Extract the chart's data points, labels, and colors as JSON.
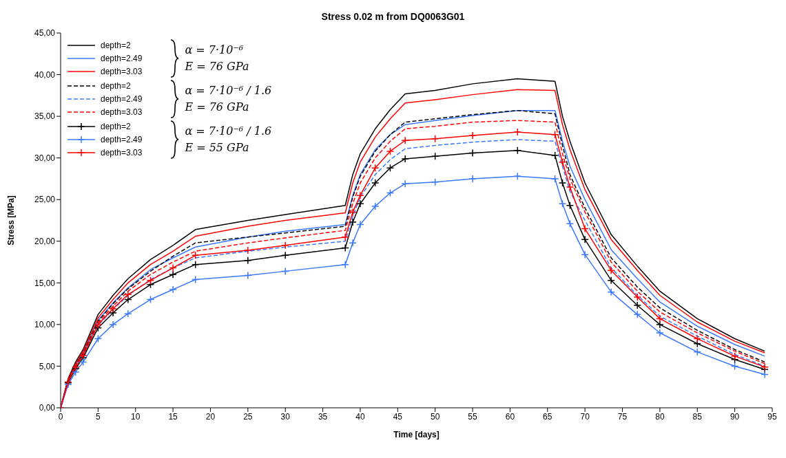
{
  "chart_data": {
    "type": "line",
    "title": "Stress 0.02 m from DQ0063G01",
    "xlabel": "Time [days]",
    "ylabel": "Stress [MPa]",
    "x": [
      0,
      1,
      2,
      3,
      5,
      7,
      9,
      12,
      15,
      18,
      25,
      30,
      38,
      39,
      40,
      42,
      44,
      46,
      50,
      55,
      61,
      66,
      67,
      68,
      70,
      73.5,
      77,
      80,
      85,
      90,
      94
    ],
    "xlim": [
      0,
      95
    ],
    "xticks": [
      0,
      5,
      10,
      15,
      20,
      25,
      30,
      35,
      40,
      45,
      50,
      55,
      60,
      65,
      70,
      75,
      80,
      85,
      90,
      95
    ],
    "ylim": [
      0,
      45
    ],
    "yticks": [
      {
        "value": 0,
        "label": "0,00"
      },
      {
        "value": 5,
        "label": "5,00"
      },
      {
        "value": 10,
        "label": "10,00"
      },
      {
        "value": 15,
        "label": "15,00"
      },
      {
        "value": 20,
        "label": "20,00"
      },
      {
        "value": 25,
        "label": "25,00"
      },
      {
        "value": 30,
        "label": "30,00"
      },
      {
        "value": 35,
        "label": "35,00"
      },
      {
        "value": 40,
        "label": "40,00"
      },
      {
        "value": 45,
        "label": "45,00"
      }
    ],
    "legend": "top left",
    "marker": "none",
    "line_style": "solid",
    "annotations": [
      "α = 7·10⁻⁶",
      "E = 76 GPa",
      "α = 7·10⁻⁶ / 1.6",
      "E = 76 GPa",
      "α = 7·10⁻⁶ / 1.6",
      "E = 55 GPa"
    ],
    "series": [
      {
        "name": "depth=2",
        "color": "#000000",
        "values": [
          0,
          3.5,
          5.5,
          7,
          11.2,
          13.5,
          15.5,
          17.8,
          19.5,
          21.4,
          22.5,
          23.2,
          24.3,
          28,
          30.5,
          33.5,
          35.8,
          37.7,
          38.1,
          38.9,
          39.5,
          39.2,
          35,
          32,
          27,
          20.8,
          17,
          14,
          10.7,
          8.3,
          6.8
        ]
      },
      {
        "name": "depth=2.49",
        "color": "#3a78ff",
        "values": [
          0,
          3.3,
          5.2,
          6.6,
          10.5,
          12.6,
          14.4,
          16.6,
          18,
          19.3,
          20.5,
          21.2,
          22,
          25.5,
          28,
          31,
          32.8,
          34,
          34.5,
          35.1,
          35.7,
          35.7,
          32,
          29,
          25,
          19,
          15.5,
          12.7,
          9.8,
          7.6,
          6.2
        ]
      },
      {
        "name": "depth=3.03",
        "color": "#ff0000",
        "values": [
          0,
          3.4,
          5.3,
          6.8,
          10.8,
          13,
          15,
          17.2,
          18.8,
          20.6,
          21.8,
          22.5,
          23.4,
          27,
          29.5,
          32.5,
          34.7,
          36.6,
          37,
          37.6,
          38.2,
          38.1,
          34,
          31,
          26.2,
          20.2,
          16.5,
          13.5,
          10.3,
          8,
          6.6
        ]
      },
      {
        "name": "depth=2",
        "color": "#000000",
        "line_style": "dashed",
        "values": [
          0,
          3.3,
          5.1,
          6.5,
          10.4,
          12.5,
          14.3,
          16.4,
          18.2,
          19.8,
          20.5,
          21,
          21.8,
          25.3,
          27.8,
          30.8,
          32.8,
          34.3,
          34.7,
          35.2,
          35.7,
          35.3,
          31.5,
          28,
          24,
          18,
          14.5,
          12,
          9.3,
          7,
          5.5
        ]
      },
      {
        "name": "depth=2.49",
        "color": "#3a78ff",
        "line_style": "dashed",
        "values": [
          0,
          3.1,
          4.9,
          6.2,
          9.9,
          11.8,
          13.5,
          15.4,
          16.8,
          18,
          18.8,
          19.3,
          20,
          23,
          25.3,
          28,
          29.8,
          31.1,
          31.5,
          31.9,
          32.2,
          32,
          29,
          26,
          22.5,
          16.8,
          13.5,
          11,
          8.6,
          6.4,
          5
        ]
      },
      {
        "name": "depth=3.03",
        "color": "#ff0000",
        "line_style": "dashed",
        "values": [
          0,
          3.2,
          5,
          6.4,
          10.2,
          12.2,
          14,
          16,
          17.5,
          18.8,
          19.8,
          20.4,
          21.3,
          24.5,
          27,
          30,
          32,
          33.5,
          33.8,
          34.3,
          34.5,
          34.3,
          30.5,
          27.5,
          23.5,
          17.5,
          14,
          11.5,
          9,
          6.8,
          5.3
        ]
      },
      {
        "name": "depth=2",
        "color": "#000000",
        "marker": "cross",
        "values": [
          0,
          3,
          4.7,
          6,
          9.6,
          11.4,
          13,
          14.8,
          16,
          17.2,
          17.7,
          18.3,
          19.2,
          22.3,
          24.5,
          27,
          28.8,
          29.9,
          30.2,
          30.6,
          30.9,
          30.3,
          27,
          24.3,
          20.2,
          15.3,
          12.3,
          10,
          7.7,
          5.8,
          4.6
        ]
      },
      {
        "name": "depth=2.49",
        "color": "#3a78ff",
        "marker": "cross",
        "values": [
          0,
          2.8,
          4.3,
          5.5,
          8.3,
          10,
          11.3,
          13,
          14.2,
          15.4,
          15.9,
          16.4,
          17.2,
          19.8,
          22,
          24.2,
          25.8,
          26.9,
          27.1,
          27.5,
          27.8,
          27.5,
          24.5,
          22.1,
          18.4,
          13.9,
          11.2,
          9,
          6.7,
          5,
          4
        ]
      },
      {
        "name": "depth=3.03",
        "color": "#ff0000",
        "marker": "cross",
        "values": [
          0,
          3.1,
          4.9,
          6.3,
          10,
          11.9,
          13.6,
          15.3,
          16.8,
          18.3,
          18.9,
          19.5,
          20.5,
          23.5,
          25.5,
          28.8,
          30.8,
          32.1,
          32.3,
          32.7,
          33.1,
          32.8,
          29.5,
          26.5,
          21.5,
          16.5,
          13.3,
          10.7,
          8.3,
          6.2,
          4.9
        ]
      }
    ]
  }
}
